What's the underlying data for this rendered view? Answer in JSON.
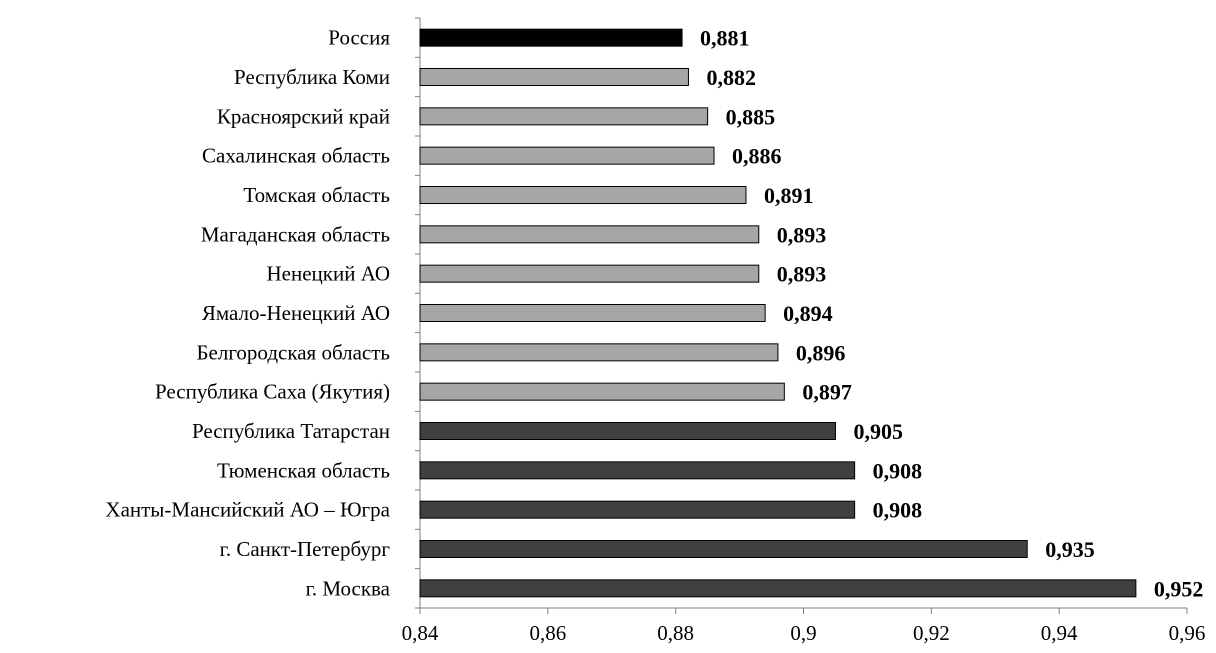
{
  "chart_data": {
    "type": "bar",
    "orientation": "horizontal",
    "title": "",
    "xlabel": "",
    "ylabel": "",
    "xlim": [
      0.84,
      0.96
    ],
    "x_ticks": [
      0.84,
      0.86,
      0.88,
      0.9,
      0.92,
      0.94,
      0.96
    ],
    "x_tick_labels": [
      "0,84",
      "0,86",
      "0,88",
      "0,9",
      "0,92",
      "0,94",
      "0,96"
    ],
    "grid": false,
    "legend": "none",
    "colors": {
      "russia": "#000000",
      "middle": "#a6a6a6",
      "top": "#404040"
    },
    "categories": [
      "Россия",
      "Республика Коми",
      "Красноярский край",
      "Сахалинская область",
      "Томская область",
      "Магаданская область",
      "Ненецкий АО",
      "Ямало-Ненецкий АО",
      "Белгородская область",
      "Республика Саха (Якутия)",
      "Республика Татарстан",
      "Тюменская область",
      "Ханты-Мансийский АО – Югра",
      "г. Санкт-Петербург",
      "г. Москва"
    ],
    "values": [
      0.881,
      0.882,
      0.885,
      0.886,
      0.891,
      0.893,
      0.893,
      0.894,
      0.896,
      0.897,
      0.905,
      0.908,
      0.908,
      0.935,
      0.952
    ],
    "value_labels": [
      "0,881",
      "0,882",
      "0,885",
      "0,886",
      "0,891",
      "0,893",
      "0,893",
      "0,894",
      "0,896",
      "0,897",
      "0,905",
      "0,908",
      "0,908",
      "0,935",
      "0,952"
    ],
    "bar_groups": [
      "russia",
      "middle",
      "middle",
      "middle",
      "middle",
      "middle",
      "middle",
      "middle",
      "middle",
      "middle",
      "top",
      "top",
      "top",
      "top",
      "top"
    ]
  }
}
